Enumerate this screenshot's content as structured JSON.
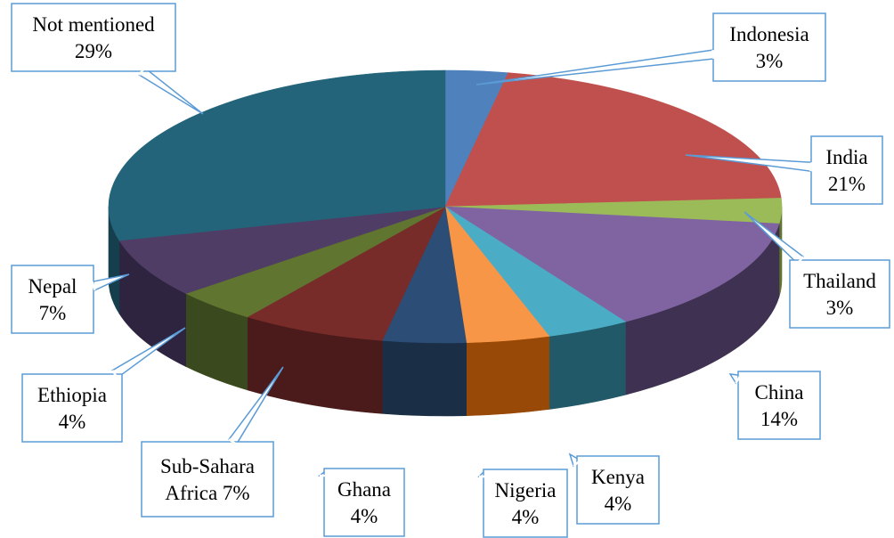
{
  "chart_data": {
    "type": "pie",
    "title": "",
    "slices": [
      {
        "label": "Indonesia",
        "value": 3,
        "display": "Indonesia\n3%",
        "color": "#4f81bd",
        "dark": "#2c4d75"
      },
      {
        "label": "India",
        "value": 21,
        "display": "India\n21%",
        "color": "#c0504d",
        "dark": "#772c2a"
      },
      {
        "label": "Thailand",
        "value": 3,
        "display": "Thailand\n3%",
        "color": "#9bbb59",
        "dark": "#5f7530"
      },
      {
        "label": "China",
        "value": 14,
        "display": "China\n14%",
        "color": "#8064a2",
        "dark": "#3f3151"
      },
      {
        "label": "Kenya",
        "value": 4,
        "display": "Kenya\n4%",
        "color": "#4bacc6",
        "dark": "#215968"
      },
      {
        "label": "Nigeria",
        "value": 4,
        "display": "Nigeria\n4%",
        "color": "#f79646",
        "dark": "#984807"
      },
      {
        "label": "Ghana",
        "value": 4,
        "display": "Ghana\n4%",
        "color": "#2c4d75",
        "dark": "#1a2e46"
      },
      {
        "label": "Sub-Sahara Africa",
        "value": 7,
        "display": "Sub-Sahara\nAfrica 7%",
        "color": "#772c2a",
        "dark": "#4a1b1a"
      },
      {
        "label": "Ethiopia",
        "value": 4,
        "display": "Ethiopia\n4%",
        "color": "#5f7530",
        "dark": "#3b4a1e"
      },
      {
        "label": "Nepal",
        "value": 7,
        "display": "Nepal\n7%",
        "color": "#4f3d66",
        "dark": "#2e2440"
      },
      {
        "label": "Not mentioned",
        "value": 29,
        "display": "Not mentioned\n29%",
        "color": "#23647a",
        "dark": "#163f4d"
      }
    ],
    "legend": "none",
    "data_labels": "callouts"
  }
}
